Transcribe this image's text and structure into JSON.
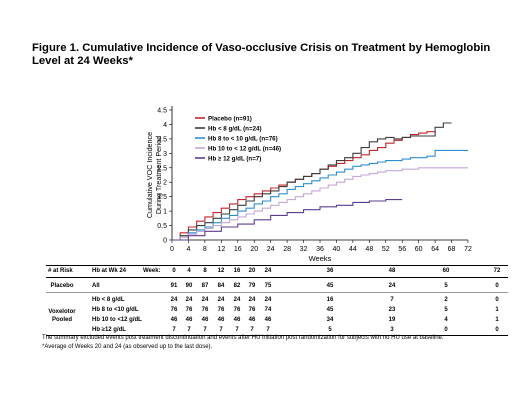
{
  "figure": {
    "title": "Figure 1. Cumulative Incidence of Vaso-occlusive Crisis on Treatment by Hemoglobin Level at 24 Weeks*"
  },
  "chart_data": {
    "type": "line",
    "xlabel": "Weeks",
    "ylabel_line1": "Cumulative VOC Incidence",
    "ylabel_line2": "During Treatment Period",
    "xlim": [
      0,
      72
    ],
    "ylim": [
      0,
      4.5
    ],
    "x_ticks": [
      "0",
      "4",
      "8",
      "12",
      "16",
      "20",
      "24",
      "28",
      "32",
      "36",
      "40",
      "44",
      "48",
      "52",
      "56",
      "60",
      "64",
      "68",
      "72"
    ],
    "y_ticks": [
      "0",
      "0.5",
      "1",
      "1.5",
      "2",
      "2.5",
      "3",
      "3.5",
      "4",
      "4.5"
    ],
    "grid": false,
    "legend_position": "top-left",
    "series": [
      {
        "name": "Placebo (n=91)",
        "color": "#c0262d",
        "points": [
          [
            0,
            0
          ],
          [
            2,
            0.25
          ],
          [
            4,
            0.45
          ],
          [
            6,
            0.65
          ],
          [
            8,
            0.8
          ],
          [
            10,
            0.95
          ],
          [
            12,
            1.1
          ],
          [
            14,
            1.25
          ],
          [
            16,
            1.4
          ],
          [
            18,
            1.5
          ],
          [
            20,
            1.6
          ],
          [
            22,
            1.7
          ],
          [
            24,
            1.8
          ],
          [
            26,
            1.9
          ],
          [
            28,
            2.0
          ],
          [
            30,
            2.1
          ],
          [
            32,
            2.2
          ],
          [
            34,
            2.3
          ],
          [
            36,
            2.45
          ],
          [
            38,
            2.55
          ],
          [
            40,
            2.65
          ],
          [
            42,
            2.75
          ],
          [
            44,
            2.85
          ],
          [
            46,
            2.95
          ],
          [
            48,
            3.1
          ],
          [
            50,
            3.2
          ],
          [
            52,
            3.35
          ],
          [
            54,
            3.45
          ],
          [
            56,
            3.55
          ],
          [
            58,
            3.65
          ],
          [
            60,
            3.7
          ],
          [
            62,
            3.75
          ],
          [
            64,
            3.75
          ]
        ]
      },
      {
        "name": "Hb < 8 g/dL (n=24)",
        "color": "#3d3d3d",
        "points": [
          [
            0,
            0
          ],
          [
            2,
            0.15
          ],
          [
            4,
            0.35
          ],
          [
            6,
            0.5
          ],
          [
            8,
            0.6
          ],
          [
            10,
            0.75
          ],
          [
            12,
            0.9
          ],
          [
            14,
            1.05
          ],
          [
            16,
            1.2
          ],
          [
            18,
            1.35
          ],
          [
            20,
            1.5
          ],
          [
            22,
            1.6
          ],
          [
            24,
            1.7
          ],
          [
            26,
            1.85
          ],
          [
            28,
            2.0
          ],
          [
            30,
            2.1
          ],
          [
            32,
            2.2
          ],
          [
            34,
            2.3
          ],
          [
            36,
            2.45
          ],
          [
            38,
            2.6
          ],
          [
            40,
            2.75
          ],
          [
            42,
            2.85
          ],
          [
            44,
            3.0
          ],
          [
            46,
            3.2
          ],
          [
            48,
            3.4
          ],
          [
            50,
            3.5
          ],
          [
            52,
            3.55
          ],
          [
            54,
            3.5
          ],
          [
            56,
            3.55
          ],
          [
            58,
            3.6
          ],
          [
            60,
            3.6
          ],
          [
            62,
            3.6
          ],
          [
            64,
            3.9
          ],
          [
            66,
            4.05
          ],
          [
            68,
            4.05
          ]
        ]
      },
      {
        "name": "Hb 8 to < 10 g/dL (n=76)",
        "color": "#2e8fd0",
        "points": [
          [
            0,
            0
          ],
          [
            2,
            0.1
          ],
          [
            4,
            0.25
          ],
          [
            6,
            0.35
          ],
          [
            8,
            0.45
          ],
          [
            10,
            0.6
          ],
          [
            12,
            0.75
          ],
          [
            14,
            0.85
          ],
          [
            16,
            1.0
          ],
          [
            18,
            1.1
          ],
          [
            20,
            1.25
          ],
          [
            22,
            1.35
          ],
          [
            24,
            1.5
          ],
          [
            26,
            1.6
          ],
          [
            28,
            1.75
          ],
          [
            30,
            1.85
          ],
          [
            32,
            1.95
          ],
          [
            34,
            2.05
          ],
          [
            36,
            2.15
          ],
          [
            38,
            2.25
          ],
          [
            40,
            2.35
          ],
          [
            42,
            2.45
          ],
          [
            44,
            2.55
          ],
          [
            46,
            2.6
          ],
          [
            48,
            2.65
          ],
          [
            50,
            2.7
          ],
          [
            52,
            2.75
          ],
          [
            54,
            2.75
          ],
          [
            56,
            2.8
          ],
          [
            58,
            2.85
          ],
          [
            60,
            2.85
          ],
          [
            62,
            2.9
          ],
          [
            64,
            3.1
          ],
          [
            66,
            3.1
          ],
          [
            68,
            3.1
          ],
          [
            72,
            3.1
          ]
        ]
      },
      {
        "name": "Hb 10 to < 12 g/dL (n=46)",
        "color": "#c3a9d8",
        "points": [
          [
            0,
            0
          ],
          [
            2,
            0.1
          ],
          [
            4,
            0.2
          ],
          [
            6,
            0.3
          ],
          [
            8,
            0.4
          ],
          [
            10,
            0.5
          ],
          [
            12,
            0.6
          ],
          [
            14,
            0.7
          ],
          [
            16,
            0.8
          ],
          [
            18,
            0.9
          ],
          [
            20,
            1.0
          ],
          [
            22,
            1.1
          ],
          [
            24,
            1.2
          ],
          [
            26,
            1.3
          ],
          [
            28,
            1.4
          ],
          [
            30,
            1.5
          ],
          [
            32,
            1.6
          ],
          [
            34,
            1.7
          ],
          [
            36,
            1.8
          ],
          [
            38,
            1.9
          ],
          [
            40,
            2.0
          ],
          [
            42,
            2.1
          ],
          [
            44,
            2.2
          ],
          [
            46,
            2.25
          ],
          [
            48,
            2.3
          ],
          [
            50,
            2.35
          ],
          [
            52,
            2.4
          ],
          [
            54,
            2.4
          ],
          [
            56,
            2.45
          ],
          [
            58,
            2.45
          ],
          [
            60,
            2.5
          ],
          [
            64,
            2.5
          ],
          [
            68,
            2.5
          ],
          [
            72,
            2.5
          ]
        ]
      },
      {
        "name": "Hb ≥ 12 g/dL (n=7)",
        "color": "#5b3f8f",
        "points": [
          [
            0,
            0
          ],
          [
            4,
            0.15
          ],
          [
            8,
            0.3
          ],
          [
            12,
            0.45
          ],
          [
            16,
            0.55
          ],
          [
            20,
            0.7
          ],
          [
            24,
            0.85
          ],
          [
            28,
            0.95
          ],
          [
            32,
            1.05
          ],
          [
            36,
            1.15
          ],
          [
            40,
            1.2
          ],
          [
            44,
            1.3
          ],
          [
            48,
            1.35
          ],
          [
            52,
            1.4
          ],
          [
            56,
            1.4
          ]
        ]
      }
    ]
  },
  "risk_table": {
    "col_risk": "# at Risk",
    "col_hb": "Hb at Wk 24",
    "col_week": "Week:",
    "weeks": [
      "0",
      "4",
      "8",
      "12",
      "16",
      "20",
      "24",
      "36",
      "48",
      "60",
      "72"
    ],
    "placebo_group": "Placebo",
    "voxelotor_group_line1": "Voxelotor",
    "voxelotor_group_line2": "Pooled",
    "rows": [
      {
        "label": "All",
        "values": [
          "91",
          "90",
          "87",
          "84",
          "82",
          "79",
          "75",
          "45",
          "24",
          "5",
          "0"
        ]
      },
      {
        "label": "Hb < 8 g/dL",
        "values": [
          "24",
          "24",
          "24",
          "24",
          "24",
          "24",
          "24",
          "16",
          "7",
          "2",
          "0"
        ]
      },
      {
        "label": "Hb 8 to <10 g/dL",
        "values": [
          "76",
          "76",
          "76",
          "76",
          "76",
          "76",
          "74",
          "45",
          "23",
          "5",
          "1"
        ]
      },
      {
        "label": "Hb 10 to <12 g/dL",
        "values": [
          "46",
          "46",
          "46",
          "46",
          "46",
          "46",
          "46",
          "34",
          "19",
          "4",
          "1"
        ]
      },
      {
        "label": "Hb ≥12 g/dL",
        "values": [
          "7",
          "7",
          "7",
          "7",
          "7",
          "7",
          "7",
          "5",
          "3",
          "0",
          "0"
        ]
      }
    ]
  },
  "footnotes": {
    "line1": "The summary excluded events post treatment discontinuation and events after HU initiation post randomization for subjects with no HU use at baseline.",
    "line2": "*Average of Weeks 20 and 24 (as observed up to the last dose)."
  }
}
